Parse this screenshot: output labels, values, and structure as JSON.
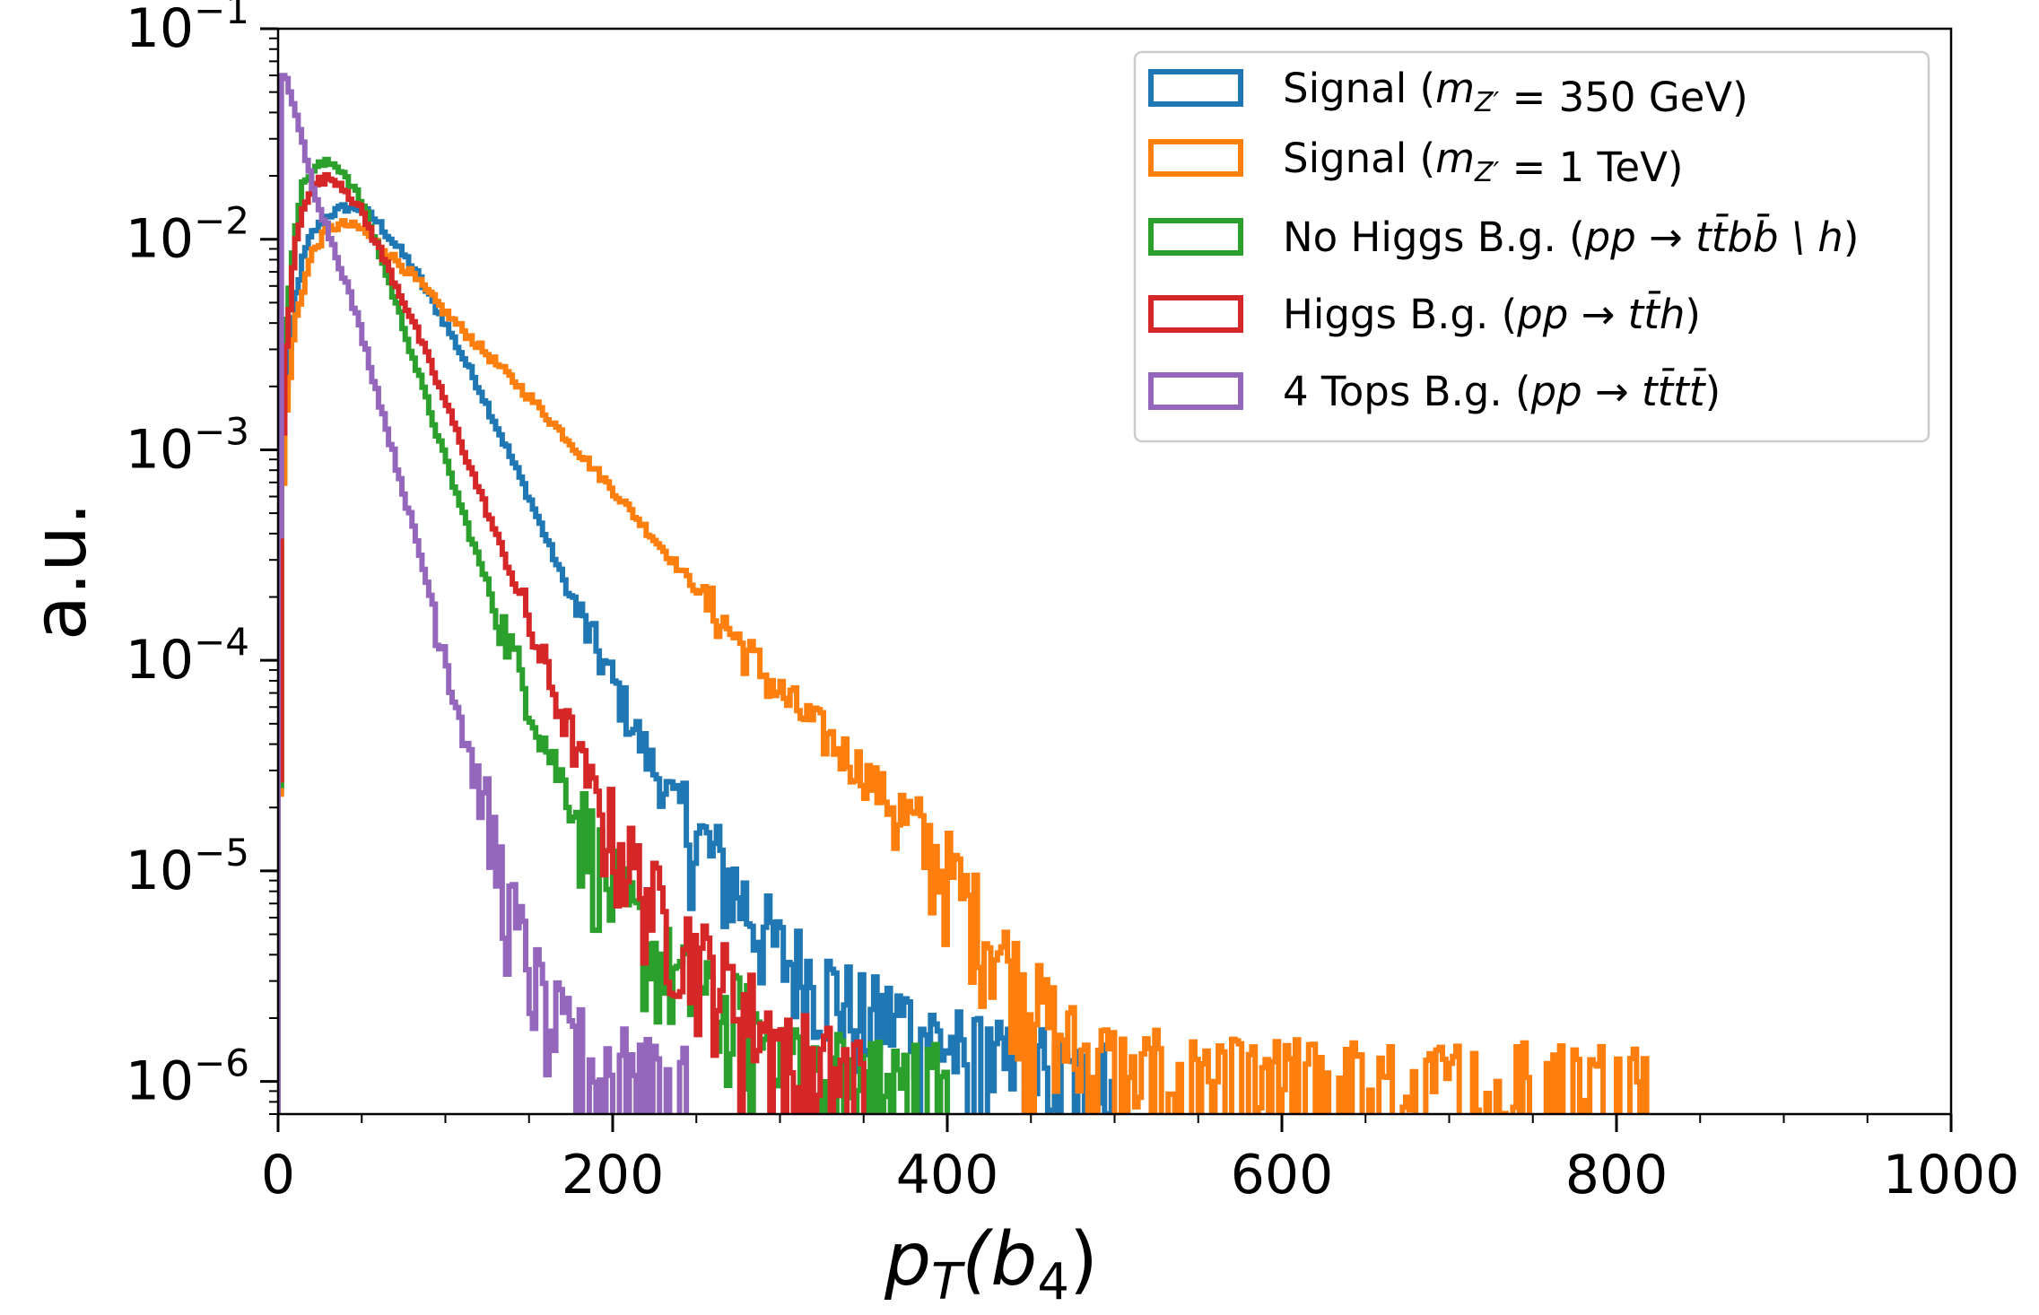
{
  "chart_data": {
    "type": "step-histogram",
    "xlabel": "p_T(b_4)",
    "ylabel": "a.u.",
    "xlim": [
      0,
      1000
    ],
    "ylim": [
      7e-07,
      0.1
    ],
    "yscale": "log",
    "xticks": [
      0,
      200,
      400,
      600,
      800,
      1000
    ],
    "xtick_labels": [
      "0",
      "200",
      "400",
      "600",
      "800",
      "1000"
    ],
    "yticks": [
      1e-06,
      1e-05,
      0.0001,
      0.001,
      0.01,
      0.1
    ],
    "ytick_labels": [
      {
        "base": "10",
        "exp": "−6"
      },
      {
        "base": "10",
        "exp": "−5"
      },
      {
        "base": "10",
        "exp": "−4"
      },
      {
        "base": "10",
        "exp": "−3"
      },
      {
        "base": "10",
        "exp": "−2"
      },
      {
        "base": "10",
        "exp": "−1"
      }
    ],
    "legend_position": "top-right",
    "grid": false,
    "series": [
      {
        "name": "Signal (m_{Z'} = 350 GeV)",
        "legend_parts": [
          [
            "Signal (",
            "n"
          ],
          [
            "m",
            "i"
          ],
          [
            "Z′",
            "sub"
          ],
          [
            " = 350 GeV)",
            "n"
          ]
        ],
        "color": "#1f77b4",
        "x": [
          0,
          2,
          5,
          10,
          15,
          20,
          30,
          40,
          50,
          60,
          80,
          100,
          120,
          150,
          175,
          200,
          225,
          250,
          275,
          300,
          325,
          350,
          375,
          400,
          425,
          450,
          475,
          500
        ],
        "y": [
          1e-06,
          0.0005,
          0.002,
          0.005,
          0.008,
          0.0105,
          0.013,
          0.0142,
          0.014,
          0.012,
          0.0075,
          0.004,
          0.002,
          0.0006,
          0.0002,
          8e-05,
          3e-05,
          1.5e-05,
          8e-06,
          4e-06,
          3e-06,
          2e-06,
          2e-06,
          1.5e-06,
          1.2e-06,
          1.2e-06,
          1e-06,
          1e-06
        ]
      },
      {
        "name": "Signal (m_{Z'} = 1 TeV)",
        "legend_parts": [
          [
            "Signal (",
            "n"
          ],
          [
            "m",
            "i"
          ],
          [
            "Z′",
            "sub"
          ],
          [
            " = 1 TeV)",
            "n"
          ]
        ],
        "color": "#ff7f0e",
        "x": [
          0,
          2,
          5,
          10,
          20,
          30,
          40,
          50,
          60,
          80,
          100,
          150,
          200,
          250,
          300,
          350,
          400,
          425,
          450,
          475,
          500,
          550,
          600,
          650,
          700,
          750,
          820
        ],
        "y": [
          1e-06,
          0.0005,
          0.0015,
          0.004,
          0.0085,
          0.0112,
          0.0118,
          0.0112,
          0.0095,
          0.0068,
          0.0045,
          0.0018,
          0.00065,
          0.00022,
          7e-05,
          3e-05,
          1e-05,
          5e-06,
          2.5e-06,
          1.5e-06,
          1.2e-06,
          1e-06,
          1e-06,
          1e-06,
          1e-06,
          1e-06,
          1e-06
        ]
      },
      {
        "name": "No Higgs B.g. (pp → t t̄ b b̄ \\ h)",
        "legend_parts": [
          [
            "No Higgs B.g. (",
            "n"
          ],
          [
            "pp",
            "i"
          ],
          [
            " → ",
            "n"
          ],
          [
            "tt̄bb̄ \\ h",
            "i"
          ],
          [
            ")",
            "n"
          ]
        ],
        "color": "#2ca02c",
        "x": [
          0,
          2,
          5,
          10,
          15,
          20,
          25,
          30,
          35,
          40,
          50,
          60,
          70,
          80,
          100,
          120,
          140,
          160,
          180,
          200,
          225,
          250,
          275,
          300,
          325,
          350,
          375,
          400
        ],
        "y": [
          1e-06,
          0.001,
          0.004,
          0.011,
          0.018,
          0.021,
          0.0225,
          0.023,
          0.0225,
          0.0205,
          0.015,
          0.009,
          0.0052,
          0.0029,
          0.0009,
          0.0003,
          0.00011,
          4e-05,
          1.8e-05,
          8e-06,
          4e-06,
          2.5e-06,
          2e-06,
          1.5e-06,
          1.2e-06,
          1e-06,
          1e-06,
          1e-06
        ]
      },
      {
        "name": "Higgs B.g. (pp → t t̄ h)",
        "legend_parts": [
          [
            "Higgs B.g. (",
            "n"
          ],
          [
            "pp",
            "i"
          ],
          [
            " → ",
            "n"
          ],
          [
            "tt̄h",
            "i"
          ],
          [
            ")",
            "n"
          ]
        ],
        "color": "#d62728",
        "x": [
          0,
          2,
          5,
          10,
          15,
          20,
          25,
          30,
          35,
          40,
          50,
          60,
          80,
          100,
          120,
          140,
          160,
          180,
          200,
          225,
          250,
          275,
          300,
          325,
          350
        ],
        "y": [
          1e-06,
          0.0008,
          0.003,
          0.009,
          0.0145,
          0.0175,
          0.019,
          0.0195,
          0.019,
          0.0175,
          0.0135,
          0.0092,
          0.0042,
          0.0017,
          0.00065,
          0.00025,
          9e-05,
          3.5e-05,
          1.5e-05,
          7e-06,
          4e-06,
          2.5e-06,
          1.5e-06,
          1.2e-06,
          1e-06
        ]
      },
      {
        "name": "4 Tops B.g. (pp → t t̄ t t̄)",
        "legend_parts": [
          [
            "4 Tops B.g. (",
            "n"
          ],
          [
            "pp",
            "i"
          ],
          [
            " → ",
            "n"
          ],
          [
            "tt̄tt̄",
            "i"
          ],
          [
            ")",
            "n"
          ]
        ],
        "color": "#9467bd",
        "x": [
          0,
          1,
          2,
          3,
          5,
          8,
          10,
          15,
          20,
          30,
          40,
          50,
          60,
          70,
          80,
          90,
          100,
          110,
          120,
          130,
          140,
          150,
          160,
          175,
          200,
          225,
          250
        ],
        "y": [
          1e-06,
          0.0004,
          0.03,
          0.058,
          0.06,
          0.048,
          0.04,
          0.028,
          0.019,
          0.011,
          0.0065,
          0.0036,
          0.0018,
          0.0009,
          0.00045,
          0.00022,
          0.00011,
          5e-05,
          2.5e-05,
          1.2e-05,
          6e-06,
          3.5e-06,
          2.2e-06,
          1.5e-06,
          1.2e-06,
          1e-06,
          1e-06
        ]
      }
    ]
  }
}
